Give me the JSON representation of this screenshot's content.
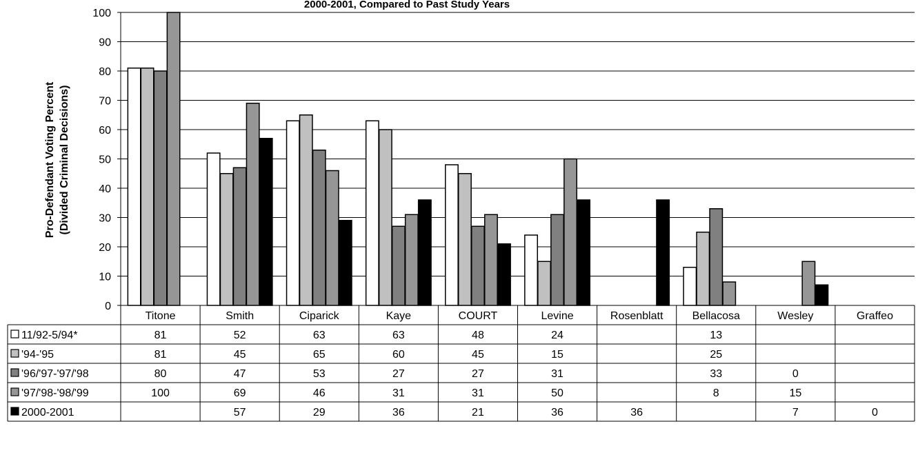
{
  "chart_data": {
    "type": "bar",
    "title": "2000-2001, Compared to Past Study Years",
    "ylabel": "Pro-Defendant Voting Percent (Divided Criminal Decisions)",
    "ylabel_lines": [
      "Pro-Defendant Voting Percent",
      "(Divided Criminal Decisions)"
    ],
    "xlabel": "",
    "ylim": [
      0,
      100
    ],
    "yticks": [
      "0",
      "10",
      "20",
      "30",
      "40",
      "50",
      "60",
      "70",
      "80",
      "90",
      "100"
    ],
    "grid": true,
    "legend_placement": "data-table-left",
    "categories": [
      "Titone",
      "Smith",
      "Ciparick",
      "Kaye",
      "COURT",
      "Levine",
      "Rosenblatt",
      "Bellacosa",
      "Wesley",
      "Graffeo"
    ],
    "series": [
      {
        "name": "11/92-5/94*",
        "color": "#ffffff",
        "values": [
          81,
          52,
          63,
          63,
          48,
          24,
          null,
          13,
          null,
          null
        ]
      },
      {
        "name": "'94-'95",
        "color": "#c0c0c0",
        "values": [
          81,
          45,
          65,
          60,
          45,
          15,
          null,
          25,
          null,
          null
        ]
      },
      {
        "name": "'96/'97-'97/'98",
        "color": "#808080",
        "values": [
          80,
          47,
          53,
          27,
          27,
          31,
          null,
          33,
          0,
          null
        ]
      },
      {
        "name": "'97/'98-'98/'99",
        "color": "#969696",
        "values": [
          100,
          69,
          46,
          31,
          31,
          50,
          null,
          8,
          15,
          null
        ]
      },
      {
        "name": "2000-2001",
        "color": "#000000",
        "values": [
          null,
          57,
          29,
          36,
          21,
          36,
          36,
          null,
          7,
          0
        ]
      }
    ]
  }
}
